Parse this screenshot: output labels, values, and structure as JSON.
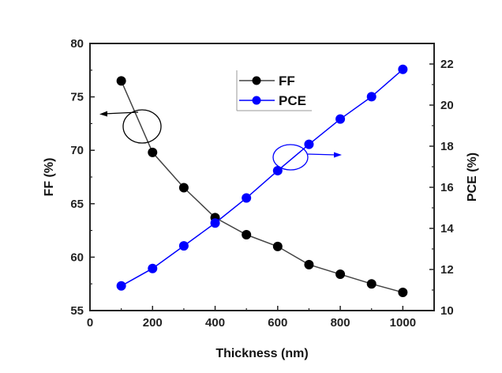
{
  "chart_data": {
    "type": "line",
    "xlabel": "Thickness (nm)",
    "ylabel_left": "FF (%)",
    "ylabel_right": "PCE (%)",
    "xlim": [
      0,
      1100
    ],
    "ylim_left": [
      55,
      80
    ],
    "ylim_right": [
      10,
      23
    ],
    "xticks": [
      0,
      200,
      400,
      600,
      800,
      1000
    ],
    "yticks_left": [
      55,
      60,
      65,
      70,
      75,
      80
    ],
    "yticks_right": [
      10,
      12,
      14,
      16,
      18,
      20,
      22
    ],
    "grid": false,
    "legend_placement": "top-center",
    "x": [
      100,
      200,
      300,
      400,
      500,
      600,
      700,
      800,
      900,
      1000
    ],
    "series": [
      {
        "name": "FF",
        "axis": "left",
        "color": "#000000",
        "line_color": "#444444",
        "values": [
          76.5,
          69.8,
          66.5,
          63.7,
          62.1,
          61.0,
          59.3,
          58.4,
          57.5,
          56.7
        ]
      },
      {
        "name": "PCE",
        "axis": "right",
        "color": "#0000ff",
        "line_color": "#0000ff",
        "values": [
          11.2,
          12.05,
          13.15,
          14.26,
          15.48,
          16.81,
          18.09,
          19.32,
          20.41,
          21.74
        ]
      }
    ]
  }
}
